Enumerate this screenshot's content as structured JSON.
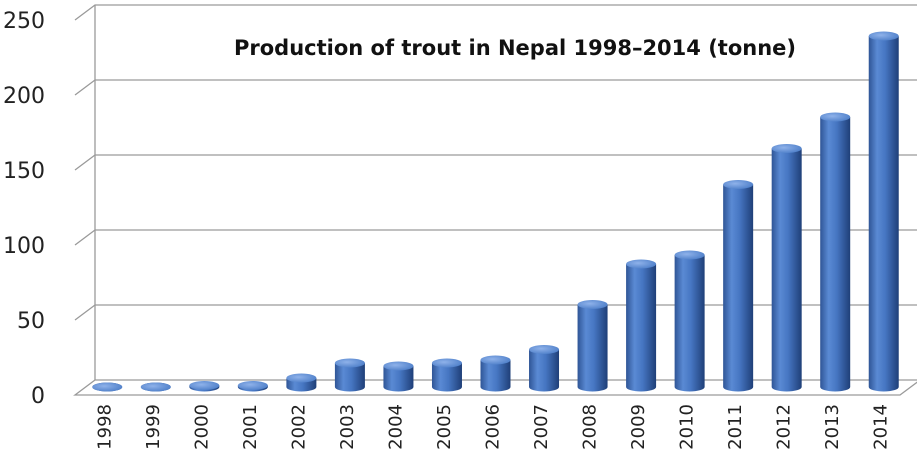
{
  "chart_data": {
    "type": "bar",
    "title": "Production of trout in Nepal 1998–2014 (tonne)",
    "xlabel": "",
    "ylabel": "",
    "categories": [
      "1998",
      "1999",
      "2000",
      "2001",
      "2002",
      "2003",
      "2004",
      "2005",
      "2006",
      "2007",
      "2008",
      "2009",
      "2010",
      "2011",
      "2012",
      "2013",
      "2014"
    ],
    "values": [
      0,
      0,
      1,
      1,
      6,
      16,
      14,
      16,
      18,
      25,
      55,
      82,
      88,
      135,
      159,
      180,
      234
    ],
    "yticks": [
      "0",
      "50",
      "100",
      "150",
      "200",
      "250"
    ],
    "ylim": [
      0,
      250
    ],
    "grid": true,
    "legend": "none",
    "bar_color": "#4a7cc7"
  }
}
